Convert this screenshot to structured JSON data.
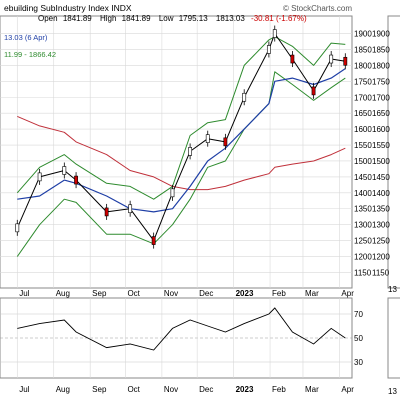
{
  "header": {
    "title": "ebuilding SubIndustry Index  INDX",
    "copyright": "© StockCharts.com",
    "ohlc": {
      "open_label": "Open",
      "open": "1841.89",
      "high_label": "High",
      "high": "1841.89",
      "low_label": "Low",
      "low": "1795.13",
      "close": "1813.03",
      "change": "-30.81 (-1.67%)"
    },
    "overlay_readout_1": "13.03 (6 Apr)",
    "overlay_readout_2": "11.99 - 1866.42"
  },
  "colors": {
    "price": "#000000",
    "down_candle": "#cc0000",
    "bollinger": "#2e8b2e",
    "ma_short": "#1f3fa6",
    "ma_long": "#c0303a",
    "rsi": "#000000",
    "grid": "#d9d9d9",
    "change_negative": "#cc0000"
  },
  "chart_data": [
    {
      "type": "line",
      "panel": "price",
      "x": [
        "2022-07-01",
        "2022-07-20",
        "2022-08-10",
        "2022-08-20",
        "2022-09-15",
        "2022-10-05",
        "2022-10-25",
        "2022-11-10",
        "2022-11-25",
        "2022-12-10",
        "2022-12-25",
        "2023-01-10",
        "2023-01-31",
        "2023-02-05",
        "2023-02-20",
        "2023-03-10",
        "2023-03-25",
        "2023-04-06"
      ],
      "series": [
        {
          "name": "",
          "role": "close",
          "values": [
            1290,
            1450,
            1470,
            1440,
            1340,
            1350,
            1250,
            1400,
            1530,
            1570,
            1560,
            1700,
            1850,
            1900,
            1820,
            1720,
            1820,
            1813
          ]
        },
        {
          "name": "",
          "role": "bollinger-upper",
          "values": [
            1400,
            1480,
            1520,
            1490,
            1430,
            1420,
            1380,
            1420,
            1580,
            1620,
            1630,
            1800,
            1880,
            1890,
            1860,
            1800,
            1870,
            1866
          ]
        },
        {
          "name": "",
          "role": "bollinger-lower",
          "values": [
            1200,
            1300,
            1380,
            1370,
            1270,
            1270,
            1240,
            1300,
            1380,
            1480,
            1500,
            1600,
            1680,
            1780,
            1740,
            1690,
            1730,
            1760
          ]
        },
        {
          "name": "",
          "role": "ma-short",
          "values": [
            1380,
            1390,
            1440,
            1430,
            1390,
            1350,
            1340,
            1350,
            1420,
            1500,
            1540,
            1600,
            1680,
            1750,
            1760,
            1740,
            1760,
            1790
          ]
        },
        {
          "name": "",
          "role": "ma-long",
          "values": [
            1640,
            1610,
            1590,
            1560,
            1520,
            1470,
            1450,
            1420,
            1410,
            1410,
            1420,
            1440,
            1460,
            1480,
            1490,
            1500,
            1520,
            1540
          ]
        }
      ],
      "x_tick_labels": [
        "Jul",
        "Aug",
        "Sep",
        "Oct",
        "Nov",
        "Dec",
        "2023",
        "Feb",
        "Mar",
        "Apr"
      ],
      "y_tick_labels": [
        1150,
        1200,
        1250,
        1300,
        1350,
        1400,
        1450,
        1500,
        1550,
        1600,
        1650,
        1700,
        1750,
        1800,
        1850,
        1900
      ],
      "ylim": [
        1120,
        1930
      ],
      "grid": true
    },
    {
      "type": "line",
      "panel": "rsi",
      "x": [
        "2022-07-01",
        "2022-07-20",
        "2022-08-10",
        "2022-08-20",
        "2022-09-15",
        "2022-10-05",
        "2022-10-25",
        "2022-11-10",
        "2022-11-25",
        "2022-12-10",
        "2022-12-25",
        "2023-01-10",
        "2023-01-31",
        "2023-02-05",
        "2023-02-20",
        "2023-03-10",
        "2023-03-25",
        "2023-04-06"
      ],
      "series": [
        {
          "name": "",
          "role": "rsi",
          "values": [
            58,
            62,
            65,
            55,
            42,
            45,
            40,
            58,
            65,
            60,
            55,
            62,
            70,
            75,
            55,
            45,
            58,
            50
          ]
        }
      ],
      "reference_lines": [
        30,
        50,
        70
      ],
      "y_tick_labels": [
        30,
        50,
        70
      ],
      "ylim": [
        20,
        80
      ],
      "x_tick_labels": [
        "Jul",
        "Aug",
        "Sep",
        "Oct",
        "Nov",
        "Dec",
        "2023",
        "Feb",
        "Mar",
        "Apr"
      ],
      "grid": true
    }
  ],
  "side_panel": {
    "top_label": "13",
    "ticks": [
      "1900",
      "1850",
      "1800",
      "1750",
      "1700",
      "1650",
      "1600",
      "1550",
      "1500",
      "1450",
      "1400",
      "1350",
      "1300",
      "1250",
      "1200",
      "1150"
    ],
    "bottom_label": "13",
    "rsi_ticks": [
      "70",
      "50",
      "30"
    ]
  }
}
